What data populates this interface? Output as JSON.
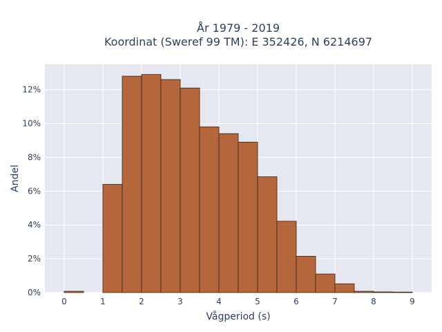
{
  "chart_data": {
    "type": "bar",
    "title": "År 1979 - 2019",
    "subtitle": "Koordinat (Sweref 99 TM): E 352426, N 6214697",
    "xlabel": "Vågperiod (s)",
    "ylabel": "Andel",
    "xlim": [
      -0.5,
      9.5
    ],
    "ylim": [
      0,
      0.135
    ],
    "x_ticks": [
      0,
      1,
      2,
      3,
      4,
      5,
      6,
      7,
      8,
      9
    ],
    "x_tick_labels": [
      "0",
      "1",
      "2",
      "3",
      "4",
      "5",
      "6",
      "7",
      "8",
      "9"
    ],
    "y_ticks": [
      0,
      0.02,
      0.04,
      0.06,
      0.08,
      0.1,
      0.12
    ],
    "y_tick_labels": [
      "0%",
      "2%",
      "4%",
      "6%",
      "8%",
      "10%",
      "12%"
    ],
    "bin_width": 0.5,
    "bins": [
      {
        "start": 0.0,
        "value": 0.0008
      },
      {
        "start": 1.0,
        "value": 0.064
      },
      {
        "start": 1.5,
        "value": 0.128
      },
      {
        "start": 2.0,
        "value": 0.129
      },
      {
        "start": 2.5,
        "value": 0.126
      },
      {
        "start": 3.0,
        "value": 0.121
      },
      {
        "start": 3.5,
        "value": 0.098
      },
      {
        "start": 4.0,
        "value": 0.094
      },
      {
        "start": 4.5,
        "value": 0.089
      },
      {
        "start": 5.0,
        "value": 0.0685
      },
      {
        "start": 5.5,
        "value": 0.0422
      },
      {
        "start": 6.0,
        "value": 0.0215
      },
      {
        "start": 6.5,
        "value": 0.011
      },
      {
        "start": 7.0,
        "value": 0.0052
      },
      {
        "start": 7.5,
        "value": 0.0008
      },
      {
        "start": 8.0,
        "value": 0.0004
      },
      {
        "start": 8.5,
        "value": 0.0003
      }
    ],
    "grid": true,
    "colors": {
      "bar_fill": "#b5663b",
      "bar_stroke": "#3b2414",
      "plot_bg": "#e5e8f0",
      "grid": "#ffffff",
      "text": "#2a3f5f"
    }
  }
}
